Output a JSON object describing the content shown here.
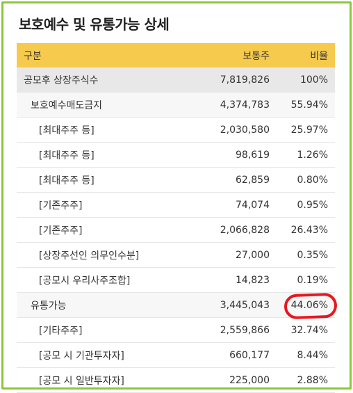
{
  "title": "보호예수 및 유통가능 상세",
  "columns": [
    "구분",
    "보통주",
    "비율"
  ],
  "rows": [
    {
      "label": "공모후 상장주식수",
      "shares": "7,819,826",
      "ratio": "100%",
      "level": 0,
      "kind": "total"
    },
    {
      "label": "보호예수매도금지",
      "shares": "4,374,783",
      "ratio": "55.94%",
      "level": 1,
      "kind": "sub"
    },
    {
      "label": "[최대주주 등]",
      "shares": "2,030,580",
      "ratio": "25.97%",
      "level": 2,
      "kind": "item"
    },
    {
      "label": "[최대주주 등]",
      "shares": "98,619",
      "ratio": "1.26%",
      "level": 2,
      "kind": "item"
    },
    {
      "label": "[최대주주 등]",
      "shares": "62,859",
      "ratio": "0.80%",
      "level": 2,
      "kind": "item"
    },
    {
      "label": "[기존주주]",
      "shares": "74,074",
      "ratio": "0.95%",
      "level": 2,
      "kind": "item"
    },
    {
      "label": "[기존주주]",
      "shares": "2,066,828",
      "ratio": "26.43%",
      "level": 2,
      "kind": "item"
    },
    {
      "label": "[상장주선인 의무인수분]",
      "shares": "27,000",
      "ratio": "0.35%",
      "level": 2,
      "kind": "item"
    },
    {
      "label": "[공모시 우리사주조합]",
      "shares": "14,823",
      "ratio": "0.19%",
      "level": 2,
      "kind": "item"
    },
    {
      "label": "유통가능",
      "shares": "3,445,043",
      "ratio": "44.06%",
      "level": 1,
      "kind": "sub",
      "highlight": true
    },
    {
      "label": "[기타주주]",
      "shares": "2,559,866",
      "ratio": "32.74%",
      "level": 2,
      "kind": "item"
    },
    {
      "label": "[공모 시 기관투자자]",
      "shares": "660,177",
      "ratio": "8.44%",
      "level": 2,
      "kind": "item"
    },
    {
      "label": "[공모 시 일반투자자]",
      "shares": "225,000",
      "ratio": "2.88%",
      "level": 2,
      "kind": "item"
    }
  ],
  "colors": {
    "header": "#f6ca4c",
    "border": "#8cc63f",
    "highlight_circle": "#e8171f",
    "total_bg": "#e8e8e8",
    "sub_bg": "#f7f7f7"
  }
}
